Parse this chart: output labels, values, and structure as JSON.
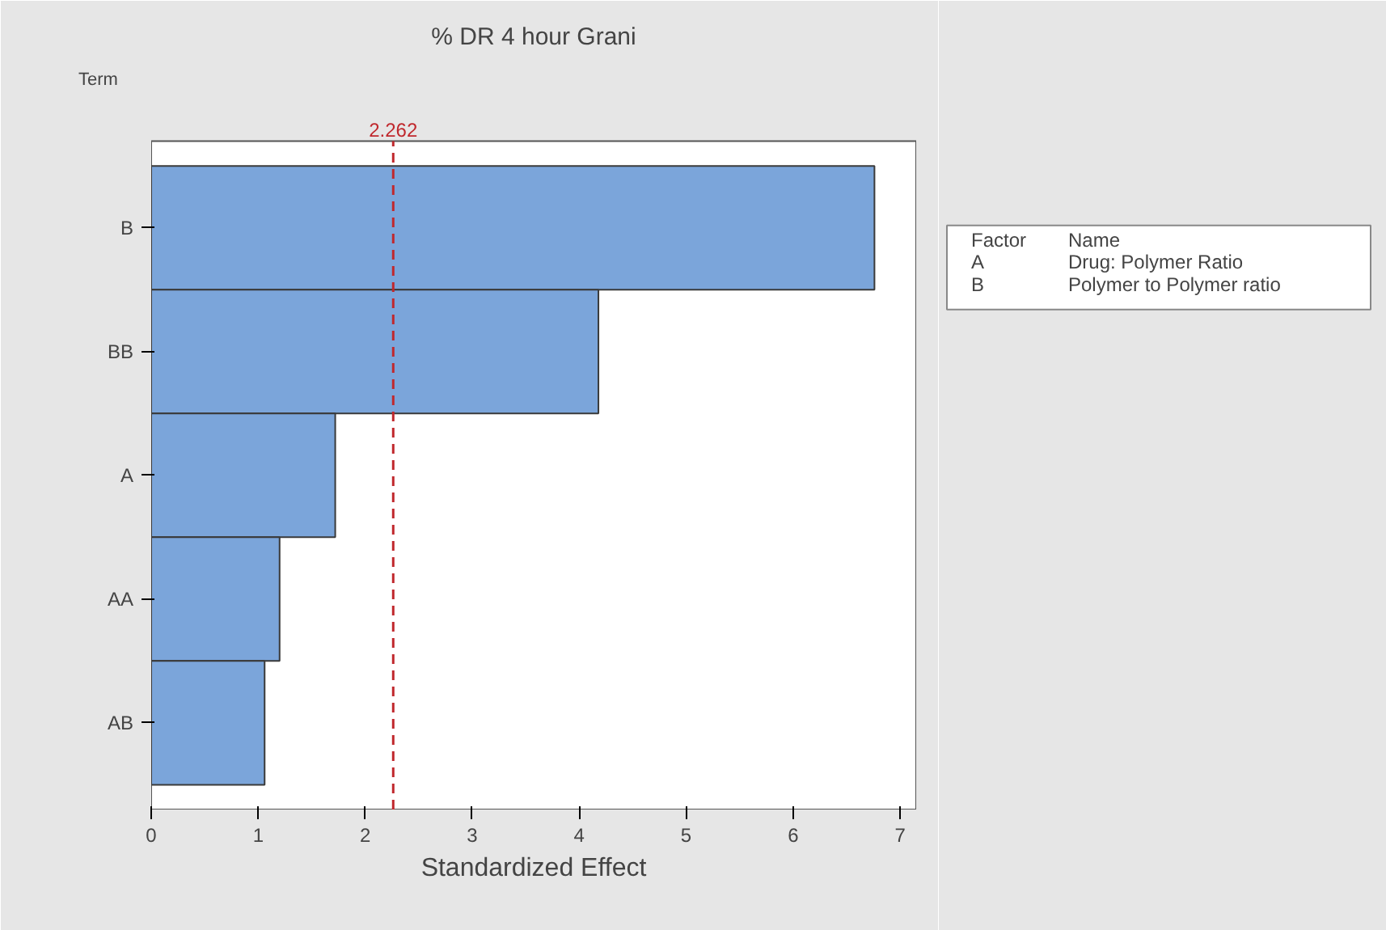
{
  "chart_data": {
    "type": "bar",
    "orientation": "horizontal",
    "title": "% DR 4 hour Grani",
    "xlabel": "Standardized Effect",
    "ylabel": "Term",
    "categories": [
      "B",
      "BB",
      "A",
      "AA",
      "AB"
    ],
    "values": [
      6.76,
      4.18,
      1.72,
      1.2,
      1.06
    ],
    "color": "#7ba5da",
    "xlim": [
      0,
      7.15
    ],
    "xticks": [
      0,
      1,
      2,
      3,
      4,
      5,
      6,
      7
    ],
    "ref_lines": [
      {
        "axis": "x",
        "value": 2.262,
        "label": "2.262",
        "color": "#c0282d",
        "line_style": "dashed"
      }
    ],
    "annotations": [
      "Factor",
      "Name",
      "A",
      "Drug: Polymer Ratio",
      "B",
      "Polymer to Polymer ratio"
    ]
  }
}
